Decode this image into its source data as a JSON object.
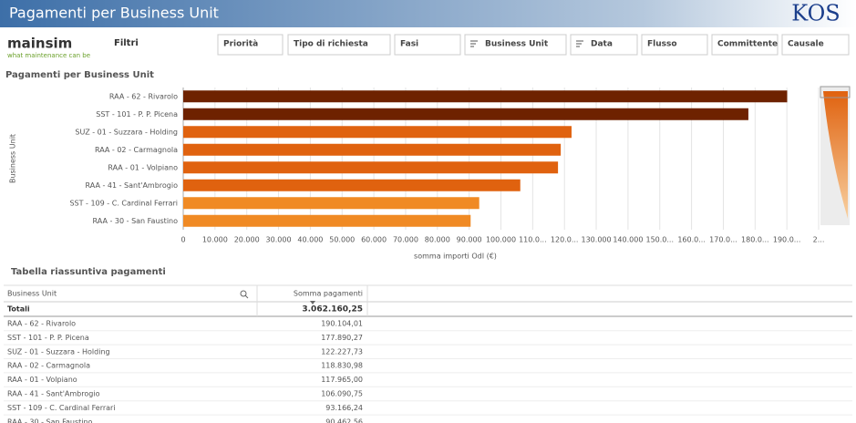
{
  "header": {
    "title": "Pagamenti per Business Unit",
    "logo": "KOS"
  },
  "toolbar": {
    "brand": "mainsim",
    "tagline": "what maintenance can be",
    "filters_title": "Filtri",
    "filters": [
      "Priorità",
      "Tipo di richiesta",
      "Fasi",
      "Business Unit",
      "Data",
      "Flusso",
      "Committente",
      "Causale"
    ]
  },
  "chart_data": {
    "type": "hbar",
    "title": "Pagamenti per Business Unit",
    "ylabel": "Business Unit",
    "xlabel": "somma importi OdI (€)",
    "categories": [
      "RAA - 62 - Rivarolo",
      "SST - 101 - P. P. Picena",
      "SUZ - 01 - Suzzara - Holding",
      "RAA - 02 - Carmagnola",
      "RAA - 01 - Volpiano",
      "RAA - 41 - Sant'Ambrogio",
      "SST - 109 - C. Cardinal Ferrari",
      "RAA - 30 - San Faustino"
    ],
    "values": [
      190104.01,
      177890.27,
      122227.73,
      118830.98,
      117965.0,
      106090.75,
      93166.24,
      90462.56
    ],
    "colors": [
      "#6e2200",
      "#6e2200",
      "#e0620f",
      "#e0620f",
      "#e0620f",
      "#e0620f",
      "#f08a24",
      "#f08a24"
    ],
    "xlim": [
      0,
      200000
    ],
    "xticks": [
      0,
      {
        "value": 10000,
        "label": "10.000"
      },
      {
        "value": 20000,
        "label": "20.000"
      },
      {
        "value": 30000,
        "label": "30.000"
      },
      {
        "value": 40000,
        "label": "40.000"
      },
      {
        "value": 50000,
        "label": "50.000"
      },
      {
        "value": 60000,
        "label": "60.000"
      },
      {
        "value": 70000,
        "label": "70.000"
      },
      {
        "value": 80000,
        "label": "80.000"
      },
      {
        "value": 90000,
        "label": "90.000"
      },
      {
        "value": 100000,
        "label": "100.000"
      },
      {
        "value": 110000,
        "label": "110.0..."
      },
      {
        "value": 120000,
        "label": "120.0..."
      },
      {
        "value": 130000,
        "label": "130.000"
      },
      {
        "value": 140000,
        "label": "140.000"
      },
      {
        "value": 150000,
        "label": "150.0..."
      },
      {
        "value": 160000,
        "label": "160.0..."
      },
      {
        "value": 170000,
        "label": "170.0..."
      },
      {
        "value": 180000,
        "label": "180.0..."
      },
      {
        "value": 190000,
        "label": "190.0..."
      },
      {
        "value": 200000,
        "label": "2..."
      }
    ],
    "grid": true
  },
  "table": {
    "title": "Tabella riassuntiva pagamenti",
    "columns": [
      "Business Unit",
      "Somma pagamenti"
    ],
    "totals": [
      "Totali",
      "3.062.160,25"
    ],
    "rows": [
      [
        "RAA - 62 - Rivarolo",
        "190.104,01"
      ],
      [
        "SST - 101 - P. P. Picena",
        "177.890,27"
      ],
      [
        "SUZ - 01 - Suzzara - Holding",
        "122.227,73"
      ],
      [
        "RAA - 02 - Carmagnola",
        "118.830,98"
      ],
      [
        "RAA - 01 - Volpiano",
        "117.965,00"
      ],
      [
        "RAA - 41 - Sant'Ambrogio",
        "106.090,75"
      ],
      [
        "SST - 109 - C. Cardinal Ferrari",
        "93.166,24"
      ],
      [
        "RAA - 30 - San Faustino",
        "90.462,56"
      ]
    ]
  }
}
